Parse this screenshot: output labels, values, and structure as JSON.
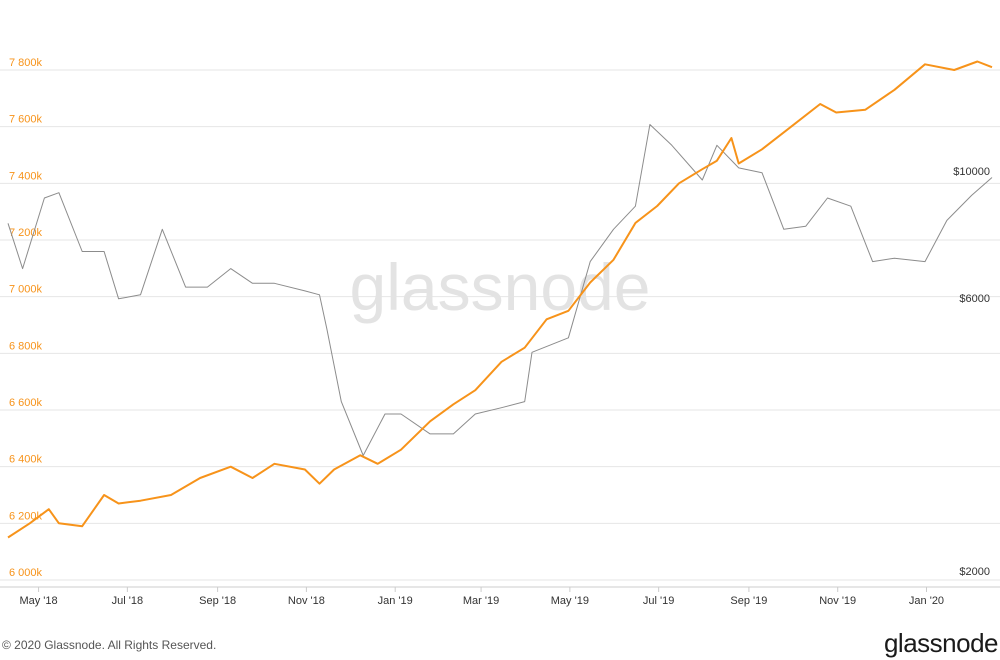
{
  "watermark": "glassnode",
  "footer": {
    "copyright": "© 2020 Glassnode. All Rights Reserved.",
    "brand": "glassnode"
  },
  "colors": {
    "primary_series": "#f7931a",
    "price_series": "#8c8c8c",
    "grid": "#e6e6e6",
    "left_axis_text": "#f7931a"
  },
  "chart_data": {
    "type": "line",
    "title": "",
    "xlabel": "",
    "grid": "horizontal",
    "x_ticks": [
      "May '18",
      "Jul '18",
      "Sep '18",
      "Nov '18",
      "Jan '19",
      "Mar '19",
      "May '19",
      "Jul '19",
      "Sep '19",
      "Nov '19",
      "Jan '20"
    ],
    "x_range": [
      "2018-04-10",
      "2020-02-15"
    ],
    "y_left": {
      "ticks": [
        "6 000k",
        "6 200k",
        "6 400k",
        "6 600k",
        "6 800k",
        "7 000k",
        "7 200k",
        "7 400k",
        "7 600k",
        "7 800k"
      ],
      "range": [
        6000,
        7860
      ],
      "unit": "k"
    },
    "y_right": {
      "ticks": [
        "$2000",
        "$6000",
        "$10000"
      ],
      "scale": "log"
    },
    "series": [
      {
        "axis": "left",
        "color": "#f7931a",
        "points": [
          [
            "2018-04-10",
            6150
          ],
          [
            "2018-04-25",
            6200
          ],
          [
            "2018-05-08",
            6250
          ],
          [
            "2018-05-15",
            6200
          ],
          [
            "2018-05-31",
            6190
          ],
          [
            "2018-06-15",
            6300
          ],
          [
            "2018-06-25",
            6270
          ],
          [
            "2018-07-10",
            6280
          ],
          [
            "2018-07-31",
            6300
          ],
          [
            "2018-08-20",
            6360
          ],
          [
            "2018-09-10",
            6400
          ],
          [
            "2018-09-25",
            6360
          ],
          [
            "2018-10-10",
            6410
          ],
          [
            "2018-10-31",
            6390
          ],
          [
            "2018-11-10",
            6340
          ],
          [
            "2018-11-20",
            6390
          ],
          [
            "2018-12-08",
            6440
          ],
          [
            "2018-12-20",
            6410
          ],
          [
            "2019-01-05",
            6460
          ],
          [
            "2019-01-25",
            6560
          ],
          [
            "2019-02-10",
            6620
          ],
          [
            "2019-02-25",
            6670
          ],
          [
            "2019-03-15",
            6770
          ],
          [
            "2019-03-31",
            6820
          ],
          [
            "2019-04-15",
            6920
          ],
          [
            "2019-04-30",
            6950
          ],
          [
            "2019-05-15",
            7050
          ],
          [
            "2019-05-31",
            7130
          ],
          [
            "2019-06-15",
            7260
          ],
          [
            "2019-06-30",
            7320
          ],
          [
            "2019-07-15",
            7400
          ],
          [
            "2019-07-31",
            7450
          ],
          [
            "2019-08-10",
            7480
          ],
          [
            "2019-08-20",
            7560
          ],
          [
            "2019-08-25",
            7470
          ],
          [
            "2019-09-10",
            7520
          ],
          [
            "2019-09-30",
            7600
          ],
          [
            "2019-10-20",
            7680
          ],
          [
            "2019-10-31",
            7650
          ],
          [
            "2019-11-20",
            7660
          ],
          [
            "2019-12-10",
            7730
          ],
          [
            "2019-12-31",
            7820
          ],
          [
            "2020-01-20",
            7800
          ],
          [
            "2020-02-05",
            7830
          ],
          [
            "2020-02-15",
            7810
          ]
        ]
      },
      {
        "axis": "right",
        "name": "",
        "color": "#8c8c8c",
        "points": [
          [
            "2018-04-10",
            8400
          ],
          [
            "2018-04-20",
            7000
          ],
          [
            "2018-05-05",
            9300
          ],
          [
            "2018-05-15",
            9500
          ],
          [
            "2018-05-31",
            7500
          ],
          [
            "2018-06-15",
            7500
          ],
          [
            "2018-06-25",
            6200
          ],
          [
            "2018-07-10",
            6300
          ],
          [
            "2018-07-25",
            8200
          ],
          [
            "2018-08-10",
            6500
          ],
          [
            "2018-08-25",
            6500
          ],
          [
            "2018-09-10",
            7000
          ],
          [
            "2018-09-25",
            6600
          ],
          [
            "2018-10-10",
            6600
          ],
          [
            "2018-10-31",
            6400
          ],
          [
            "2018-11-10",
            6300
          ],
          [
            "2018-11-15",
            5500
          ],
          [
            "2018-11-25",
            4100
          ],
          [
            "2018-12-10",
            3300
          ],
          [
            "2018-12-25",
            3900
          ],
          [
            "2019-01-05",
            3900
          ],
          [
            "2019-01-25",
            3600
          ],
          [
            "2019-02-10",
            3600
          ],
          [
            "2019-02-25",
            3900
          ],
          [
            "2019-03-15",
            4000
          ],
          [
            "2019-03-31",
            4100
          ],
          [
            "2019-04-05",
            5000
          ],
          [
            "2019-04-30",
            5300
          ],
          [
            "2019-05-15",
            7200
          ],
          [
            "2019-05-31",
            8200
          ],
          [
            "2019-06-15",
            9000
          ],
          [
            "2019-06-25",
            12500
          ],
          [
            "2019-07-10",
            11500
          ],
          [
            "2019-07-31",
            10000
          ],
          [
            "2019-08-10",
            11500
          ],
          [
            "2019-08-25",
            10500
          ],
          [
            "2019-09-10",
            10300
          ],
          [
            "2019-09-25",
            8200
          ],
          [
            "2019-10-10",
            8300
          ],
          [
            "2019-10-25",
            9300
          ],
          [
            "2019-11-10",
            9000
          ],
          [
            "2019-11-25",
            7200
          ],
          [
            "2019-12-10",
            7300
          ],
          [
            "2019-12-31",
            7200
          ],
          [
            "2020-01-15",
            8500
          ],
          [
            "2020-02-01",
            9400
          ],
          [
            "2020-02-15",
            10100
          ]
        ]
      }
    ]
  }
}
